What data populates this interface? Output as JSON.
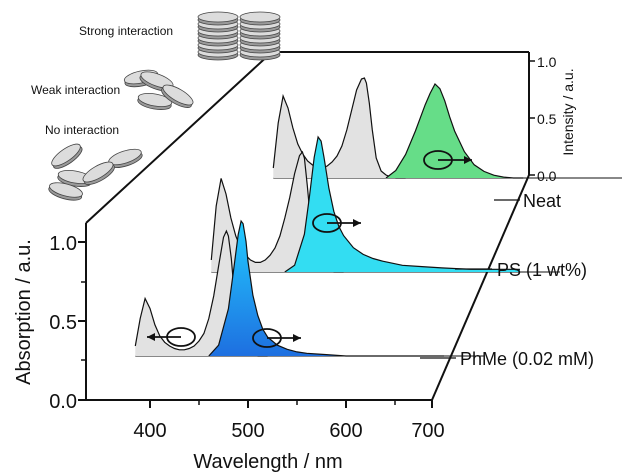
{
  "chart_data": {
    "type": "line",
    "xlabel": "Wavelength / nm",
    "ylabel_left": "Absorption / a.u.",
    "ylabel_right": "Intensity / a.u.",
    "x_ticks": [
      "400",
      "500",
      "600",
      "700"
    ],
    "xlim": [
      350,
      700
    ],
    "y_ticks_left": [
      "0.0",
      "0.5",
      "1.0"
    ],
    "ylim_left": [
      0.0,
      1.15
    ],
    "y_ticks_right": [
      "0.0",
      "0.5",
      "1.0"
    ],
    "ylim_right": [
      0.0,
      1.0
    ],
    "grid": false,
    "series": [
      {
        "name": "PhMe (0.02 mM)",
        "label": "PhMe (0.02 mM)",
        "absorption": {
          "x": [
            385,
            390,
            395,
            400,
            405,
            410,
            415,
            420,
            425,
            430,
            435,
            440,
            445,
            450,
            455,
            460,
            465,
            470,
            475,
            478,
            480,
            483,
            486,
            490,
            495,
            500,
            505,
            510,
            520
          ],
          "y": [
            0.08,
            0.3,
            0.46,
            0.38,
            0.25,
            0.16,
            0.11,
            0.08,
            0.06,
            0.05,
            0.05,
            0.06,
            0.08,
            0.12,
            0.18,
            0.3,
            0.48,
            0.72,
            0.95,
            1.0,
            0.96,
            0.78,
            0.5,
            0.22,
            0.08,
            0.03,
            0.01,
            0.0,
            0.0
          ]
        },
        "emission": {
          "x": [
            460,
            470,
            480,
            485,
            490,
            493,
            495,
            498,
            500,
            505,
            510,
            515,
            520,
            530,
            540,
            550,
            560,
            580,
            600,
            620,
            650,
            680,
            700
          ],
          "y": [
            0.0,
            0.08,
            0.35,
            0.62,
            0.9,
            1.0,
            0.98,
            0.85,
            0.7,
            0.45,
            0.3,
            0.2,
            0.14,
            0.08,
            0.05,
            0.03,
            0.02,
            0.01,
            0.0,
            0.0,
            0.0,
            0.0,
            0.0
          ]
        },
        "fill_color": "#1e90ff"
      },
      {
        "name": "PS (1 wt%)",
        "label": "PS (1 wt%)",
        "absorption": {
          "x": [
            385,
            390,
            395,
            400,
            405,
            410,
            415,
            420,
            425,
            430,
            435,
            440,
            445,
            450,
            455,
            460,
            465,
            470,
            475,
            478,
            480,
            483,
            486,
            490,
            495,
            500,
            505,
            510,
            520
          ],
          "y": [
            0.1,
            0.55,
            0.78,
            0.65,
            0.45,
            0.3,
            0.2,
            0.14,
            0.1,
            0.08,
            0.08,
            0.1,
            0.14,
            0.2,
            0.3,
            0.45,
            0.62,
            0.82,
            0.97,
            1.0,
            0.95,
            0.72,
            0.45,
            0.2,
            0.07,
            0.03,
            0.01,
            0.0,
            0.0
          ]
        },
        "emission": {
          "x": [
            460,
            470,
            480,
            485,
            490,
            494,
            497,
            500,
            505,
            510,
            515,
            520,
            530,
            540,
            550,
            560,
            580,
            600,
            620,
            650,
            680,
            700
          ],
          "y": [
            0.0,
            0.05,
            0.28,
            0.55,
            0.85,
            1.0,
            0.97,
            0.85,
            0.62,
            0.45,
            0.34,
            0.27,
            0.18,
            0.13,
            0.1,
            0.08,
            0.05,
            0.04,
            0.03,
            0.02,
            0.02,
            0.02
          ]
        },
        "fill_color": "#33ddf2"
      },
      {
        "name": "Neat",
        "label": "Neat",
        "absorption": {
          "x": [
            385,
            390,
            395,
            400,
            405,
            410,
            415,
            420,
            425,
            430,
            435,
            440,
            445,
            450,
            455,
            460,
            465,
            470,
            475,
            478,
            480,
            483,
            486,
            490,
            495,
            500,
            505,
            510,
            520
          ],
          "y": [
            0.1,
            0.55,
            0.82,
            0.7,
            0.5,
            0.34,
            0.24,
            0.17,
            0.13,
            0.1,
            0.1,
            0.12,
            0.16,
            0.22,
            0.32,
            0.48,
            0.68,
            0.88,
            0.99,
            1.0,
            0.95,
            0.75,
            0.48,
            0.2,
            0.07,
            0.03,
            0.01,
            0.0,
            0.0
          ]
        },
        "emission": {
          "x": [
            500,
            510,
            520,
            530,
            540,
            545,
            550,
            555,
            560,
            565,
            570,
            580,
            590,
            600,
            610,
            620,
            630,
            640
          ],
          "y": [
            0.0,
            0.08,
            0.25,
            0.5,
            0.78,
            0.9,
            1.0,
            0.95,
            0.82,
            0.65,
            0.5,
            0.28,
            0.14,
            0.07,
            0.03,
            0.01,
            0.0,
            0.0
          ]
        },
        "fill_color": "#66dd88"
      }
    ],
    "legend": {
      "interaction_labels": [
        "Strong interaction",
        "Weak interaction",
        "No interaction"
      ]
    }
  },
  "colors": {
    "absorption_fill": "#dddddd",
    "emission_gradient_top_phme": "#22ccff",
    "emission_gradient_bottom_phme": "#1e6fe0",
    "emission_ps": "#33e0f5",
    "emission_neat": "#66dd8c",
    "line": "#111111"
  }
}
